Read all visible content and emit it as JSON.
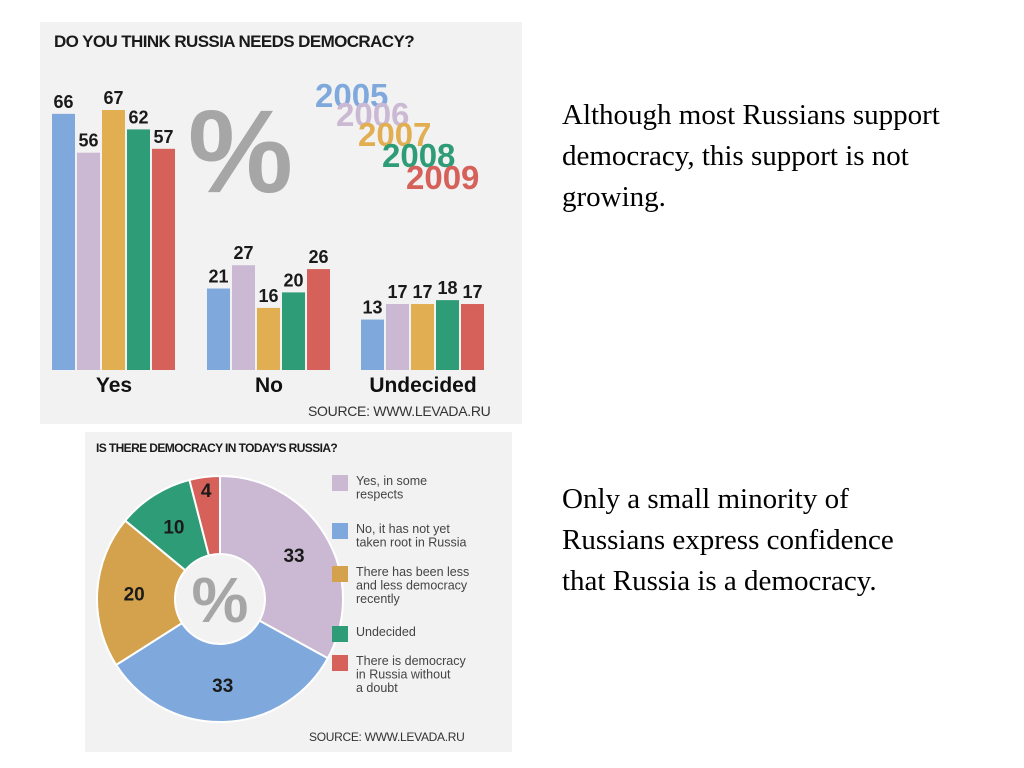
{
  "text_blocks": {
    "text_1": "Although most Russians support democracy, this support is not growing.",
    "text_2": "Only a small minority of Russians express confidence that Russia is a democracy."
  },
  "bar_panel": {
    "title": "DO YOU THINK RUSSIA NEEDS DEMOCRACY?",
    "percent_symbol": "%",
    "source": "SOURCE: WWW.LEVADA.RU"
  },
  "pie_panel": {
    "title": "IS THERE DEMOCRACY IN TODAY'S RUSSIA?",
    "center_symbol": "%",
    "source": "SOURCE: WWW.LEVADA.RU"
  },
  "colors": {
    "2005": "#7fa9dc",
    "2006": "#cbb9d4",
    "2007": "#e2ae52",
    "2008": "#2e9c76",
    "2009": "#d5615a",
    "percent_gray": "#a6a6a6",
    "panel_bg": "#f2f2f2"
  },
  "chart_data": [
    {
      "type": "bar",
      "title": "DO YOU THINK RUSSIA NEEDS DEMOCRACY?",
      "categories": [
        "Yes",
        "No",
        "Undecided"
      ],
      "series": [
        {
          "name": "2005",
          "color": "#7fa9dc",
          "values": [
            66,
            21,
            13
          ]
        },
        {
          "name": "2006",
          "color": "#cbb9d4",
          "values": [
            56,
            27,
            17
          ]
        },
        {
          "name": "2007",
          "color": "#e2ae52",
          "values": [
            67,
            16,
            17
          ]
        },
        {
          "name": "2008",
          "color": "#2e9c76",
          "values": [
            62,
            20,
            18
          ]
        },
        {
          "name": "2009",
          "color": "#d5615a",
          "values": [
            57,
            26,
            17
          ]
        }
      ],
      "ylim": [
        0,
        67
      ],
      "xlabel": "",
      "ylabel": "",
      "grid": false,
      "legend_position": "top-right"
    },
    {
      "type": "pie",
      "title": "IS THERE DEMOCRACY IN TODAY'S RUSSIA?",
      "donut": true,
      "slices": [
        {
          "label": "Yes, in some respects",
          "value": 33,
          "color": "#cbb9d4"
        },
        {
          "label": "No, it has not yet taken root in Russia",
          "value": 33,
          "color": "#7fa9dc"
        },
        {
          "label": "There has been less and less democracy recently",
          "value": 20,
          "color": "#d4a24c"
        },
        {
          "label": "Undecided",
          "value": 10,
          "color": "#2e9c76"
        },
        {
          "label": "There is democracy in Russia without a doubt",
          "value": 4,
          "color": "#d5615a"
        }
      ],
      "legend_position": "right"
    }
  ]
}
